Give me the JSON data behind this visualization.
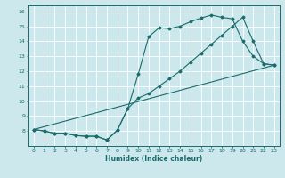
{
  "xlabel": "Humidex (Indice chaleur)",
  "bg_color": "#cce8ec",
  "grid_color": "#ffffff",
  "line_color": "#1a6b6b",
  "xlim": [
    -0.5,
    23.5
  ],
  "ylim": [
    7,
    16.4
  ],
  "xticks": [
    0,
    1,
    2,
    3,
    4,
    5,
    6,
    7,
    8,
    9,
    10,
    11,
    12,
    13,
    14,
    15,
    16,
    17,
    18,
    19,
    20,
    21,
    22,
    23
  ],
  "yticks": [
    8,
    9,
    10,
    11,
    12,
    13,
    14,
    15,
    16
  ],
  "line1_x": [
    0,
    1,
    2,
    3,
    4,
    5,
    6,
    7,
    8,
    9,
    10,
    11,
    12,
    13,
    14,
    15,
    16,
    17,
    18,
    19,
    20,
    21,
    22,
    23
  ],
  "line1_y": [
    8.1,
    8.0,
    7.85,
    7.85,
    7.7,
    7.65,
    7.65,
    7.4,
    8.05,
    9.5,
    11.8,
    14.3,
    14.9,
    14.85,
    15.0,
    15.3,
    15.55,
    15.75,
    15.6,
    15.5,
    14.0,
    13.0,
    12.5,
    12.4
  ],
  "line2_x": [
    0,
    1,
    2,
    3,
    4,
    5,
    6,
    7,
    8,
    9,
    10,
    11,
    12,
    13,
    14,
    15,
    16,
    17,
    18,
    19,
    20,
    21,
    22,
    23
  ],
  "line2_y": [
    8.1,
    8.0,
    7.85,
    7.85,
    7.7,
    7.65,
    7.65,
    7.4,
    8.05,
    9.5,
    10.2,
    10.5,
    11.0,
    11.5,
    12.0,
    12.6,
    13.2,
    13.8,
    14.4,
    15.0,
    15.6,
    14.0,
    12.5,
    12.4
  ],
  "line3_x": [
    0,
    23
  ],
  "line3_y": [
    8.1,
    12.4
  ]
}
